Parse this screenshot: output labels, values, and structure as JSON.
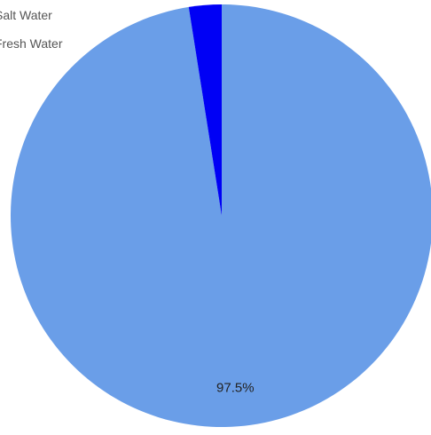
{
  "chart_data": {
    "type": "pie",
    "title": "",
    "categories": [
      "Salt Water",
      "Fresh Water"
    ],
    "values": [
      97.5,
      2.5
    ],
    "colors": [
      "#6a9ee8",
      "#0000f5"
    ],
    "data_labels": [
      "97.5%",
      ""
    ],
    "start_angle_deg": 0,
    "direction": "clockwise",
    "legend": {
      "position": "top-left",
      "items": [
        {
          "label": "Salt Water",
          "color": "#6a9ee8"
        },
        {
          "label": "Fresh Water",
          "color": "#0000f5"
        }
      ]
    }
  }
}
